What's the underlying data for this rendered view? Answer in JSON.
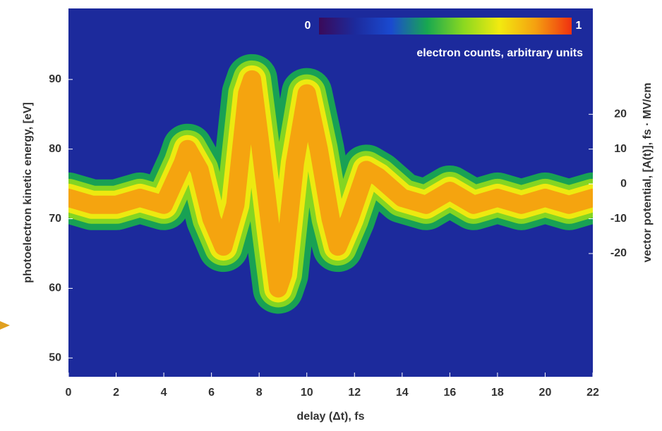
{
  "chart_data": {
    "type": "heatmap",
    "xlabel": "delay (Δt), fs",
    "ylabel": "photoelectron kinetic energy, [eV]",
    "y2label": "vector potential, [A(t)], fs · MV/cm",
    "colorbar_label": "electron counts, arbitrary units",
    "colorbar_ticks": [
      0,
      1
    ],
    "colorscale": [
      "#3a0a5a",
      "#1c2a9c",
      "#1a4ad0",
      "#18a850",
      "#8ad820",
      "#f2ea10",
      "#f5a010",
      "#f03010"
    ],
    "x": [
      0,
      1,
      2,
      3,
      4,
      4.8,
      5,
      5.5,
      6,
      6.5,
      7,
      7.5,
      7.7,
      8,
      8.5,
      8.8,
      9,
      9.5,
      10,
      10.5,
      11,
      11.3,
      11.8,
      12.5,
      13,
      14,
      15,
      16,
      17,
      18,
      19,
      20,
      21,
      22
    ],
    "values": [
      73,
      72,
      72,
      73,
      72,
      78,
      80,
      77,
      70,
      66,
      72,
      88,
      90,
      82,
      68,
      60,
      62,
      78,
      88,
      80,
      70,
      66,
      70,
      77,
      76,
      73,
      72,
      74,
      72,
      73,
      72,
      73,
      72,
      73
    ],
    "xlim": [
      0,
      22
    ],
    "xticks": [
      0,
      2,
      4,
      6,
      8,
      10,
      12,
      14,
      16,
      18,
      20,
      22
    ],
    "ylim": [
      47.3,
      100.2
    ],
    "yticks": [
      50,
      60,
      70,
      80,
      90
    ],
    "y2lim": [
      -55.4,
      50.4
    ],
    "y2ticks": [
      20,
      10,
      0,
      -10,
      -20
    ]
  }
}
